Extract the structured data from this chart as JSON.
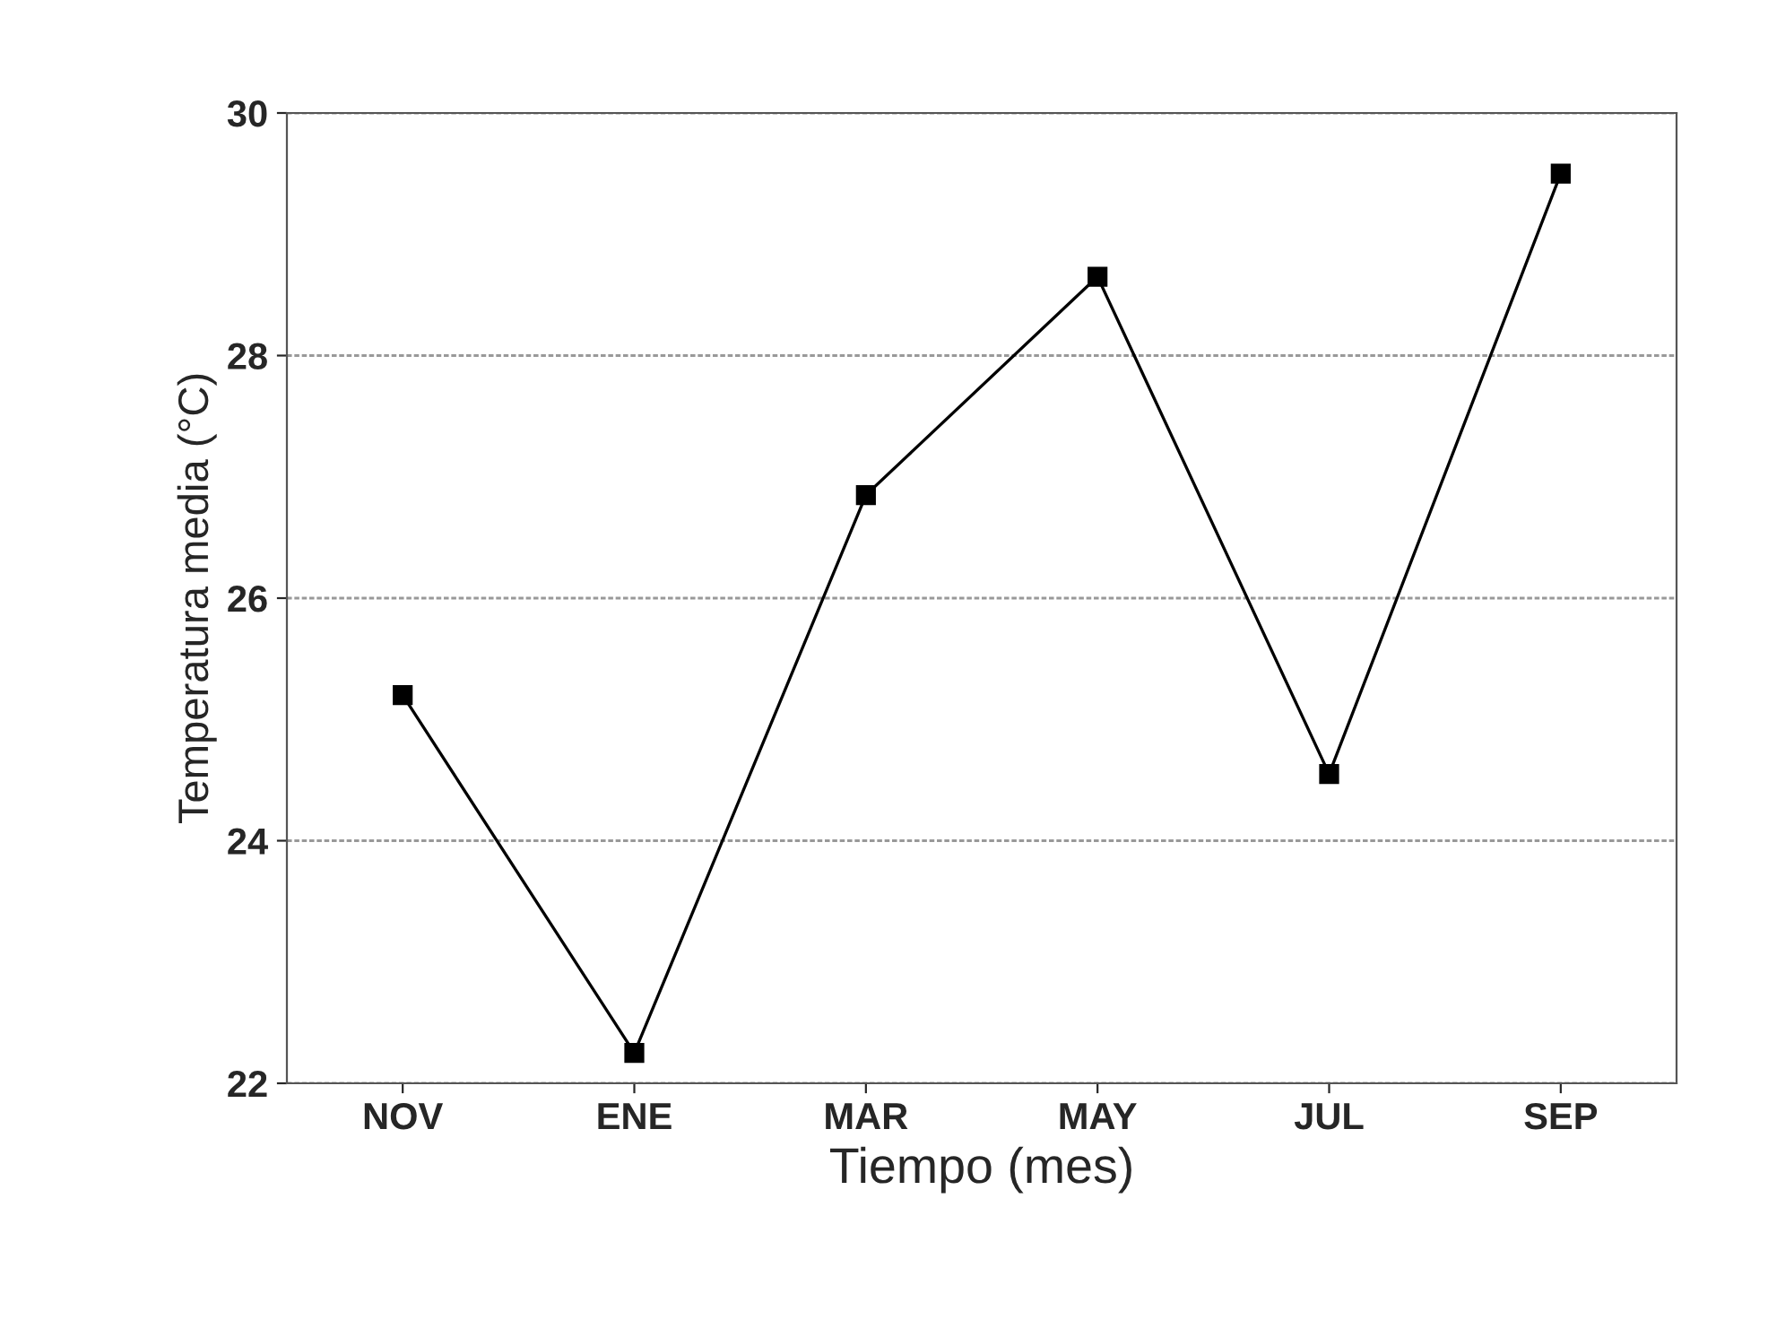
{
  "chart_data": {
    "type": "line",
    "xlabel": "Tiempo (mes)",
    "ylabel": "Temperatura media (°C)",
    "categories": [
      "NOV",
      "ENE",
      "MAR",
      "MAY",
      "JUL",
      "SEP"
    ],
    "series": [
      {
        "color": "#000000",
        "values": [
          25.2,
          22.25,
          26.85,
          28.65,
          24.55,
          29.5
        ]
      }
    ],
    "ylim": [
      22,
      30
    ],
    "yticks": [
      22,
      24,
      26,
      28,
      30
    ],
    "grid": "y",
    "marker": "square",
    "line_style": "solid"
  }
}
